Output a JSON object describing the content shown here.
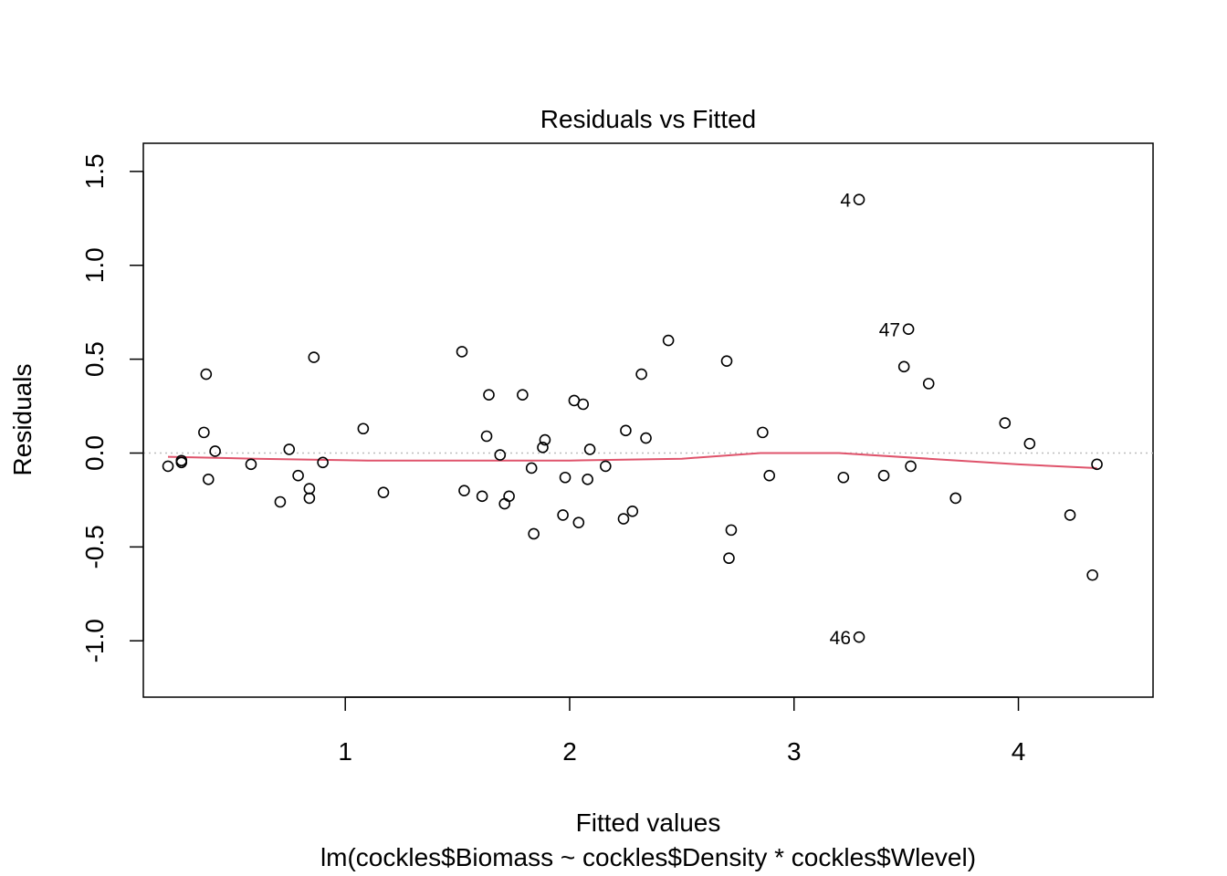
{
  "chart_data": {
    "type": "scatter",
    "title": "Residuals vs Fitted",
    "xlabel": "Fitted values",
    "subtitle": "lm(cockles$Biomass ~ cockles$Density * cockles$Wlevel)",
    "ylabel": "Residuals",
    "xlim": [
      0.1,
      4.6
    ],
    "ylim": [
      -1.3,
      1.65
    ],
    "x_ticks": [
      1,
      2,
      3,
      4
    ],
    "x_tick_labels": [
      "1",
      "2",
      "3",
      "4"
    ],
    "y_ticks": [
      -1.0,
      -0.5,
      0.0,
      0.5,
      1.0,
      1.5
    ],
    "y_tick_labels": [
      "-1.0",
      "-0.5",
      "0.0",
      "0.5",
      "1.0",
      "1.5"
    ],
    "reference_line": {
      "y": 0,
      "style": "dotted",
      "color": "#bebebe"
    },
    "colors": {
      "points": "#000000",
      "smooth": "#df536b",
      "reference": "#bebebe"
    },
    "points": [
      {
        "x": 0.21,
        "y": -0.07
      },
      {
        "x": 0.27,
        "y": -0.05
      },
      {
        "x": 0.27,
        "y": -0.04
      },
      {
        "x": 0.37,
        "y": 0.11
      },
      {
        "x": 0.38,
        "y": 0.42
      },
      {
        "x": 0.39,
        "y": -0.14
      },
      {
        "x": 0.42,
        "y": 0.01
      },
      {
        "x": 0.58,
        "y": -0.06
      },
      {
        "x": 0.71,
        "y": -0.26
      },
      {
        "x": 0.75,
        "y": 0.02
      },
      {
        "x": 0.79,
        "y": -0.12
      },
      {
        "x": 0.84,
        "y": -0.19
      },
      {
        "x": 0.84,
        "y": -0.24
      },
      {
        "x": 0.86,
        "y": 0.51
      },
      {
        "x": 0.9,
        "y": -0.05
      },
      {
        "x": 1.08,
        "y": 0.13
      },
      {
        "x": 1.17,
        "y": -0.21
      },
      {
        "x": 1.52,
        "y": 0.54
      },
      {
        "x": 1.53,
        "y": -0.2
      },
      {
        "x": 1.61,
        "y": -0.23
      },
      {
        "x": 1.63,
        "y": 0.09
      },
      {
        "x": 1.64,
        "y": 0.31
      },
      {
        "x": 1.69,
        "y": -0.01
      },
      {
        "x": 1.71,
        "y": -0.27
      },
      {
        "x": 1.73,
        "y": -0.23
      },
      {
        "x": 1.79,
        "y": 0.31
      },
      {
        "x": 1.83,
        "y": -0.08
      },
      {
        "x": 1.84,
        "y": -0.43
      },
      {
        "x": 1.88,
        "y": 0.03
      },
      {
        "x": 1.89,
        "y": 0.07
      },
      {
        "x": 1.97,
        "y": -0.33
      },
      {
        "x": 1.98,
        "y": -0.13
      },
      {
        "x": 2.02,
        "y": 0.28
      },
      {
        "x": 2.04,
        "y": -0.37
      },
      {
        "x": 2.06,
        "y": 0.26
      },
      {
        "x": 2.08,
        "y": -0.14
      },
      {
        "x": 2.09,
        "y": 0.02
      },
      {
        "x": 2.16,
        "y": -0.07
      },
      {
        "x": 2.24,
        "y": -0.35
      },
      {
        "x": 2.25,
        "y": 0.12
      },
      {
        "x": 2.28,
        "y": -0.31
      },
      {
        "x": 2.32,
        "y": 0.42
      },
      {
        "x": 2.34,
        "y": 0.08
      },
      {
        "x": 2.44,
        "y": 0.6
      },
      {
        "x": 2.7,
        "y": 0.49
      },
      {
        "x": 2.71,
        "y": -0.56
      },
      {
        "x": 2.72,
        "y": -0.41
      },
      {
        "x": 2.86,
        "y": 0.11
      },
      {
        "x": 2.89,
        "y": -0.12
      },
      {
        "x": 3.22,
        "y": -0.13
      },
      {
        "x": 3.29,
        "y": 1.35,
        "label": "4"
      },
      {
        "x": 3.29,
        "y": -0.98,
        "label": "46"
      },
      {
        "x": 3.4,
        "y": -0.12
      },
      {
        "x": 3.49,
        "y": 0.46
      },
      {
        "x": 3.51,
        "y": 0.66,
        "label": "47"
      },
      {
        "x": 3.52,
        "y": -0.07
      },
      {
        "x": 3.6,
        "y": 0.37
      },
      {
        "x": 3.72,
        "y": -0.24
      },
      {
        "x": 3.94,
        "y": 0.16
      },
      {
        "x": 4.05,
        "y": 0.05
      },
      {
        "x": 4.23,
        "y": -0.33
      },
      {
        "x": 4.33,
        "y": -0.65
      },
      {
        "x": 4.35,
        "y": -0.06
      }
    ],
    "smooth_line": [
      {
        "x": 0.21,
        "y": -0.02
      },
      {
        "x": 0.6,
        "y": -0.03
      },
      {
        "x": 1.1,
        "y": -0.04
      },
      {
        "x": 1.6,
        "y": -0.04
      },
      {
        "x": 2.0,
        "y": -0.04
      },
      {
        "x": 2.5,
        "y": -0.03
      },
      {
        "x": 2.85,
        "y": 0.0
      },
      {
        "x": 3.2,
        "y": 0.0
      },
      {
        "x": 3.6,
        "y": -0.03
      },
      {
        "x": 4.0,
        "y": -0.06
      },
      {
        "x": 4.35,
        "y": -0.08
      }
    ]
  }
}
